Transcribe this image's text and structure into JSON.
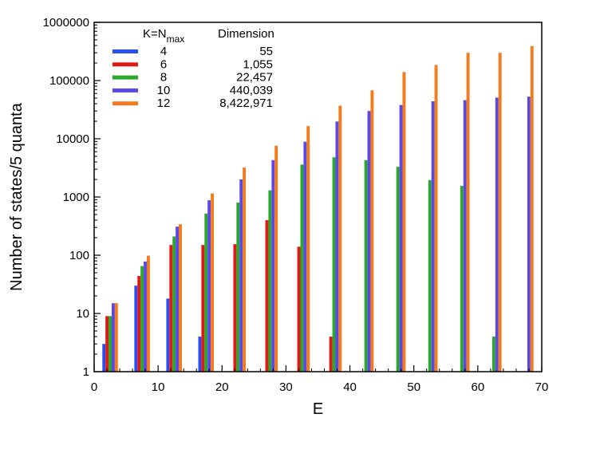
{
  "chart_data": {
    "type": "bar",
    "xlabel": "E",
    "ylabel": "Number of states/5 quanta",
    "xlim": [
      0,
      70
    ],
    "ylim": [
      1,
      1000000
    ],
    "yscale": "log",
    "grid": false,
    "legend_position": "top-left",
    "legend": {
      "header_label": "K=N",
      "header_sub": "max",
      "header_dimension": "Dimension"
    },
    "x_ticks": [
      "0",
      "10",
      "20",
      "30",
      "40",
      "50",
      "60",
      "70"
    ],
    "y_ticks": [
      "1",
      "10",
      "100",
      "1000",
      "10000",
      "100000",
      "1000000"
    ],
    "categories": [
      2.5,
      7.5,
      12.5,
      17.5,
      22.5,
      27.5,
      32.5,
      37.5,
      42.5,
      47.5,
      52.5,
      57.5,
      62.5,
      67.5
    ],
    "series": [
      {
        "name": "4",
        "dimension": "55",
        "color": "#2850f0",
        "values": [
          3,
          30,
          18,
          4,
          null,
          null,
          null,
          null,
          null,
          null,
          null,
          null,
          null,
          null
        ]
      },
      {
        "name": "6",
        "dimension": "1,055",
        "color": "#e01818",
        "values": [
          9,
          44,
          150,
          150,
          155,
          400,
          140,
          4,
          null,
          null,
          null,
          null,
          null,
          null
        ]
      },
      {
        "name": "8",
        "dimension": "22,457",
        "color": "#2aa82a",
        "values": [
          9,
          65,
          210,
          520,
          800,
          1300,
          3600,
          4800,
          4300,
          3300,
          1950,
          1550,
          4,
          null
        ]
      },
      {
        "name": "10",
        "dimension": "440,039",
        "color": "#5a48e8",
        "values": [
          15,
          78,
          310,
          880,
          2000,
          4300,
          8900,
          19800,
          30000,
          38000,
          44000,
          46000,
          51000,
          53000
        ]
      },
      {
        "name": "12",
        "dimension": "8,422,971",
        "color": "#f47a1e",
        "values": [
          15,
          98,
          340,
          1150,
          3200,
          7600,
          16500,
          37000,
          68000,
          140000,
          185000,
          300000,
          300000,
          390000
        ]
      }
    ]
  }
}
